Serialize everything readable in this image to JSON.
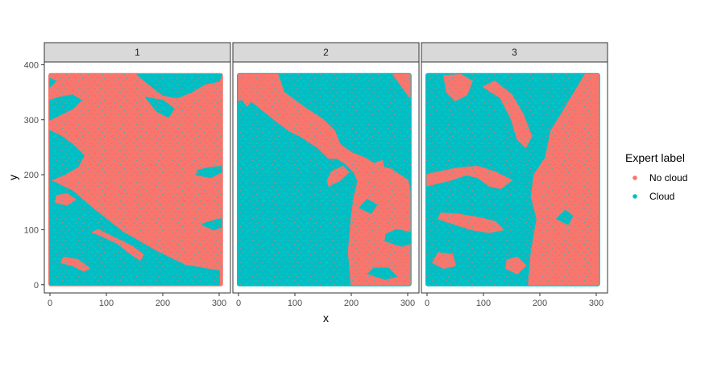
{
  "chart_data": {
    "type": "scatter",
    "x_label": "x",
    "y_label": "y",
    "xlim": [
      -10,
      320
    ],
    "ylim": [
      -15,
      405
    ],
    "x_ticks": [
      0,
      100,
      200,
      300
    ],
    "y_ticks": [
      0,
      100,
      200,
      300,
      400
    ],
    "grid": false,
    "legend_position": "right",
    "legend": {
      "title": "Expert label",
      "entries": [
        {
          "name": "No cloud",
          "color": "#F8766D"
        },
        {
          "name": "Cloud",
          "color": "#00BFC4"
        }
      ]
    },
    "data_extent": {
      "x": [
        0,
        304
      ],
      "y": [
        0,
        382
      ]
    },
    "panels": [
      {
        "label": "1",
        "background_class": "No cloud",
        "regions": [
          {
            "class": "Cloud",
            "points": [
              [
                0,
                0
              ],
              [
                300,
                0
              ],
              [
                300,
                25
              ],
              [
                240,
                35
              ],
              [
                190,
                60
              ],
              [
                130,
                95
              ],
              [
                80,
                135
              ],
              [
                40,
                170
              ],
              [
                0,
                190
              ]
            ]
          },
          {
            "class": "Cloud",
            "points": [
              [
                0,
                190
              ],
              [
                25,
                200
              ],
              [
                50,
                215
              ],
              [
                60,
                235
              ],
              [
                40,
                255
              ],
              [
                20,
                270
              ],
              [
                0,
                280
              ]
            ]
          },
          {
            "class": "Cloud",
            "points": [
              [
                0,
                300
              ],
              [
                40,
                320
              ],
              [
                55,
                335
              ],
              [
                40,
                345
              ],
              [
                15,
                340
              ],
              [
                0,
                335
              ]
            ]
          },
          {
            "class": "Cloud",
            "points": [
              [
                0,
                360
              ],
              [
                10,
                370
              ],
              [
                0,
                375
              ]
            ]
          },
          {
            "class": "Cloud",
            "points": [
              [
                155,
                382
              ],
              [
                175,
                365
              ],
              [
                200,
                345
              ],
              [
                225,
                340
              ],
              [
                250,
                350
              ],
              [
                275,
                365
              ],
              [
                300,
                370
              ],
              [
                304,
                382
              ]
            ]
          },
          {
            "class": "Cloud",
            "points": [
              [
                170,
                340
              ],
              [
                190,
                315
              ],
              [
                210,
                305
              ],
              [
                220,
                320
              ],
              [
                200,
                335
              ]
            ]
          },
          {
            "class": "Cloud",
            "points": [
              [
                260,
                200
              ],
              [
                285,
                195
              ],
              [
                304,
                205
              ],
              [
                304,
                215
              ],
              [
                280,
                212
              ],
              [
                262,
                208
              ]
            ]
          },
          {
            "class": "Cloud",
            "points": [
              [
                270,
                110
              ],
              [
                290,
                100
              ],
              [
                304,
                105
              ],
              [
                304,
                120
              ],
              [
                285,
                115
              ]
            ]
          },
          {
            "class": "No cloud",
            "points": [
              [
                75,
                95
              ],
              [
                90,
                90
              ],
              [
                120,
                75
              ],
              [
                145,
                55
              ],
              [
                160,
                45
              ],
              [
                165,
                55
              ],
              [
                145,
                70
              ],
              [
                115,
                85
              ],
              [
                85,
                100
              ]
            ]
          },
          {
            "class": "No cloud",
            "points": [
              [
                20,
                40
              ],
              [
                40,
                35
              ],
              [
                60,
                25
              ],
              [
                70,
                30
              ],
              [
                50,
                45
              ],
              [
                25,
                50
              ]
            ]
          },
          {
            "class": "No cloud",
            "points": [
              [
                10,
                150
              ],
              [
                30,
                145
              ],
              [
                45,
                155
              ],
              [
                30,
                165
              ],
              [
                12,
                162
              ]
            ]
          }
        ]
      },
      {
        "label": "2",
        "background_class": "Cloud",
        "regions": [
          {
            "class": "No cloud",
            "points": [
              [
                0,
                382
              ],
              [
                70,
                382
              ],
              [
                80,
                350
              ],
              [
                120,
                320
              ],
              [
                150,
                300
              ],
              [
                170,
                280
              ],
              [
                180,
                255
              ],
              [
                200,
                240
              ],
              [
                225,
                230
              ],
              [
                240,
                220
              ],
              [
                255,
                225
              ],
              [
                260,
                200
              ],
              [
                250,
                175
              ],
              [
                230,
                160
              ],
              [
                215,
                180
              ],
              [
                205,
                205
              ],
              [
                190,
                220
              ],
              [
                175,
                230
              ],
              [
                160,
                230
              ],
              [
                140,
                250
              ],
              [
                110,
                270
              ],
              [
                90,
                280
              ],
              [
                70,
                295
              ],
              [
                40,
                320
              ],
              [
                15,
                340
              ],
              [
                0,
                335
              ]
            ]
          },
          {
            "class": "No cloud",
            "points": [
              [
                5,
                370
              ],
              [
                25,
                370
              ],
              [
                30,
                345
              ],
              [
                15,
                325
              ],
              [
                5,
                340
              ]
            ]
          },
          {
            "class": "No cloud",
            "points": [
              [
                200,
                120
              ],
              [
                205,
                160
              ],
              [
                215,
                200
              ],
              [
                225,
                220
              ],
              [
                250,
                215
              ],
              [
                270,
                210
              ],
              [
                300,
                190
              ],
              [
                304,
                170
              ],
              [
                304,
                0
              ],
              [
                200,
                0
              ],
              [
                195,
                60
              ]
            ]
          },
          {
            "class": "No cloud",
            "points": [
              [
                160,
                180
              ],
              [
                180,
                190
              ],
              [
                195,
                205
              ],
              [
                185,
                215
              ],
              [
                165,
                205
              ],
              [
                158,
                190
              ]
            ]
          },
          {
            "class": "No cloud",
            "points": [
              [
                275,
                382
              ],
              [
                304,
                382
              ],
              [
                304,
                340
              ],
              [
                290,
                360
              ]
            ]
          },
          {
            "class": "Cloud",
            "points": [
              [
                260,
                80
              ],
              [
                290,
                70
              ],
              [
                304,
                75
              ],
              [
                304,
                95
              ],
              [
                280,
                100
              ],
              [
                262,
                92
              ]
            ]
          },
          {
            "class": "Cloud",
            "points": [
              [
                230,
                20
              ],
              [
                260,
                10
              ],
              [
                280,
                15
              ],
              [
                265,
                30
              ],
              [
                240,
                30
              ]
            ]
          },
          {
            "class": "Cloud",
            "points": [
              [
                215,
                140
              ],
              [
                235,
                130
              ],
              [
                245,
                145
              ],
              [
                228,
                155
              ]
            ]
          }
        ]
      },
      {
        "label": "3",
        "background_class": "Cloud",
        "regions": [
          {
            "class": "No cloud",
            "points": [
              [
                180,
                0
              ],
              [
                304,
                0
              ],
              [
                304,
                382
              ],
              [
                280,
                382
              ],
              [
                250,
                330
              ],
              [
                220,
                280
              ],
              [
                210,
                230
              ],
              [
                190,
                200
              ],
              [
                185,
                160
              ],
              [
                195,
                120
              ],
              [
                185,
                60
              ]
            ]
          },
          {
            "class": "No cloud",
            "points": [
              [
                30,
                380
              ],
              [
                60,
                382
              ],
              [
                80,
                370
              ],
              [
                70,
                345
              ],
              [
                50,
                335
              ],
              [
                35,
                350
              ]
            ]
          },
          {
            "class": "No cloud",
            "points": [
              [
                100,
                360
              ],
              [
                130,
                340
              ],
              [
                150,
                300
              ],
              [
                160,
                265
              ],
              [
                175,
                250
              ],
              [
                185,
                270
              ],
              [
                170,
                310
              ],
              [
                150,
                345
              ],
              [
                120,
                370
              ]
            ]
          },
          {
            "class": "No cloud",
            "points": [
              [
                0,
                180
              ],
              [
                40,
                190
              ],
              [
                70,
                200
              ],
              [
                90,
                195
              ],
              [
                110,
                180
              ],
              [
                130,
                175
              ],
              [
                150,
                190
              ],
              [
                120,
                205
              ],
              [
                90,
                215
              ],
              [
                55,
                212
              ],
              [
                20,
                205
              ],
              [
                0,
                200
              ]
            ]
          },
          {
            "class": "No cloud",
            "points": [
              [
                20,
                120
              ],
              [
                50,
                110
              ],
              [
                80,
                100
              ],
              [
                110,
                95
              ],
              [
                135,
                100
              ],
              [
                120,
                115
              ],
              [
                90,
                122
              ],
              [
                55,
                128
              ],
              [
                25,
                130
              ]
            ]
          },
          {
            "class": "No cloud",
            "points": [
              [
                10,
                40
              ],
              [
                30,
                30
              ],
              [
                50,
                35
              ],
              [
                45,
                55
              ],
              [
                20,
                58
              ]
            ]
          },
          {
            "class": "No cloud",
            "points": [
              [
                140,
                30
              ],
              [
                160,
                20
              ],
              [
                175,
                35
              ],
              [
                160,
                50
              ],
              [
                142,
                45
              ]
            ]
          },
          {
            "class": "Cloud",
            "points": [
              [
                230,
                120
              ],
              [
                250,
                110
              ],
              [
                258,
                125
              ],
              [
                245,
                135
              ]
            ]
          }
        ]
      }
    ]
  }
}
